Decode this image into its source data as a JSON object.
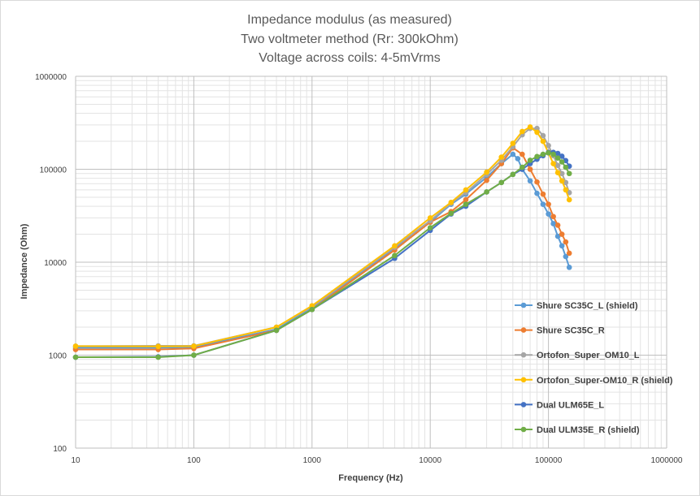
{
  "chart_data": {
    "type": "scatter",
    "title_lines": [
      "Impedance modulus (as measured)",
      "Two voltmeter method (Rr: 300kOhm)",
      "Voltage across coils: 4-5mVrms"
    ],
    "xlabel": "Frequency (Hz)",
    "ylabel": "Impedance (Ohm)",
    "x_scale": "log",
    "y_scale": "log",
    "xlim": [
      10,
      1000000
    ],
    "ylim": [
      100,
      1000000
    ],
    "x_tick_labels": [
      "10",
      "100",
      "1000",
      "10000",
      "100000",
      "1000000"
    ],
    "y_tick_labels": [
      "100",
      "1000",
      "10000",
      "100000",
      "1000000"
    ],
    "grid": true,
    "legend_position": "right",
    "series": [
      {
        "name": "Shure SC35C_L (shield)",
        "color": "#5b9bd5",
        "points": [
          [
            10,
            1200
          ],
          [
            50,
            1200
          ],
          [
            100,
            1220
          ],
          [
            500,
            1900
          ],
          [
            1000,
            3200
          ],
          [
            5000,
            14000
          ],
          [
            10000,
            27000
          ],
          [
            15000,
            42000
          ],
          [
            20000,
            54000
          ],
          [
            30000,
            82000
          ],
          [
            40000,
            115000
          ],
          [
            50000,
            145000
          ],
          [
            55000,
            130000
          ],
          [
            60000,
            100000
          ],
          [
            70000,
            75000
          ],
          [
            80000,
            55000
          ],
          [
            90000,
            42000
          ],
          [
            100000,
            33000
          ],
          [
            110000,
            26000
          ],
          [
            120000,
            19000
          ],
          [
            130000,
            15000
          ],
          [
            140000,
            11500
          ],
          [
            150000,
            8800
          ]
        ]
      },
      {
        "name": "Shure SC35C_R",
        "color": "#ed7d31",
        "points": [
          [
            10,
            1150
          ],
          [
            50,
            1150
          ],
          [
            100,
            1180
          ],
          [
            500,
            1850
          ],
          [
            1000,
            3100
          ],
          [
            5000,
            13500
          ],
          [
            10000,
            27000
          ],
          [
            15000,
            35000
          ],
          [
            20000,
            47000
          ],
          [
            30000,
            76000
          ],
          [
            40000,
            115000
          ],
          [
            50000,
            170000
          ],
          [
            60000,
            145000
          ],
          [
            70000,
            100000
          ],
          [
            80000,
            73000
          ],
          [
            90000,
            54000
          ],
          [
            100000,
            42000
          ],
          [
            110000,
            31000
          ],
          [
            120000,
            25000
          ],
          [
            130000,
            20000
          ],
          [
            140000,
            16500
          ],
          [
            150000,
            12500
          ]
        ]
      },
      {
        "name": "Ortofon_Super_OM10_L",
        "color": "#a5a5a5",
        "points": [
          [
            10,
            1250
          ],
          [
            50,
            1260
          ],
          [
            100,
            1260
          ],
          [
            500,
            2000
          ],
          [
            1000,
            3300
          ],
          [
            5000,
            14500
          ],
          [
            10000,
            28000
          ],
          [
            15000,
            43000
          ],
          [
            20000,
            56000
          ],
          [
            30000,
            88000
          ],
          [
            40000,
            125000
          ],
          [
            50000,
            175000
          ],
          [
            60000,
            235000
          ],
          [
            70000,
            275000
          ],
          [
            80000,
            275000
          ],
          [
            90000,
            230000
          ],
          [
            100000,
            180000
          ],
          [
            110000,
            140000
          ],
          [
            120000,
            110000
          ],
          [
            130000,
            90000
          ],
          [
            140000,
            72000
          ],
          [
            150000,
            56000
          ]
        ]
      },
      {
        "name": "Ortofon_Super-OM10_R (shield)",
        "color": "#ffc000",
        "points": [
          [
            10,
            1250
          ],
          [
            50,
            1240
          ],
          [
            100,
            1250
          ],
          [
            500,
            2000
          ],
          [
            1000,
            3400
          ],
          [
            5000,
            15000
          ],
          [
            10000,
            30000
          ],
          [
            15000,
            44000
          ],
          [
            20000,
            60000
          ],
          [
            30000,
            93000
          ],
          [
            40000,
            135000
          ],
          [
            50000,
            190000
          ],
          [
            60000,
            255000
          ],
          [
            70000,
            285000
          ],
          [
            80000,
            250000
          ],
          [
            90000,
            200000
          ],
          [
            100000,
            150000
          ],
          [
            110000,
            115000
          ],
          [
            120000,
            92000
          ],
          [
            130000,
            75000
          ],
          [
            140000,
            60000
          ],
          [
            150000,
            47000
          ]
        ]
      },
      {
        "name": "Dual ULM65E_L",
        "color": "#4472c4",
        "points": [
          [
            10,
            950
          ],
          [
            50,
            960
          ],
          [
            100,
            1000
          ],
          [
            500,
            1850
          ],
          [
            1000,
            3100
          ],
          [
            5000,
            11000
          ],
          [
            10000,
            22000
          ],
          [
            15000,
            33000
          ],
          [
            20000,
            40000
          ],
          [
            30000,
            57000
          ],
          [
            40000,
            72000
          ],
          [
            50000,
            88000
          ],
          [
            60000,
            100000
          ],
          [
            70000,
            115000
          ],
          [
            80000,
            128000
          ],
          [
            90000,
            140000
          ],
          [
            100000,
            152000
          ],
          [
            110000,
            152000
          ],
          [
            120000,
            148000
          ],
          [
            130000,
            138000
          ],
          [
            140000,
            124000
          ],
          [
            150000,
            108000
          ]
        ]
      },
      {
        "name": "Dual ULM35E_R (shield)",
        "color": "#70ad47",
        "points": [
          [
            10,
            950
          ],
          [
            50,
            950
          ],
          [
            100,
            1000
          ],
          [
            500,
            1850
          ],
          [
            1000,
            3100
          ],
          [
            5000,
            11800
          ],
          [
            10000,
            23500
          ],
          [
            15000,
            33500
          ],
          [
            20000,
            42000
          ],
          [
            30000,
            57000
          ],
          [
            40000,
            72000
          ],
          [
            50000,
            88000
          ],
          [
            60000,
            105000
          ],
          [
            70000,
            125000
          ],
          [
            80000,
            137000
          ],
          [
            90000,
            145000
          ],
          [
            100000,
            150000
          ],
          [
            110000,
            145000
          ],
          [
            120000,
            132000
          ],
          [
            130000,
            120000
          ],
          [
            140000,
            105000
          ],
          [
            150000,
            90000
          ]
        ]
      }
    ]
  }
}
